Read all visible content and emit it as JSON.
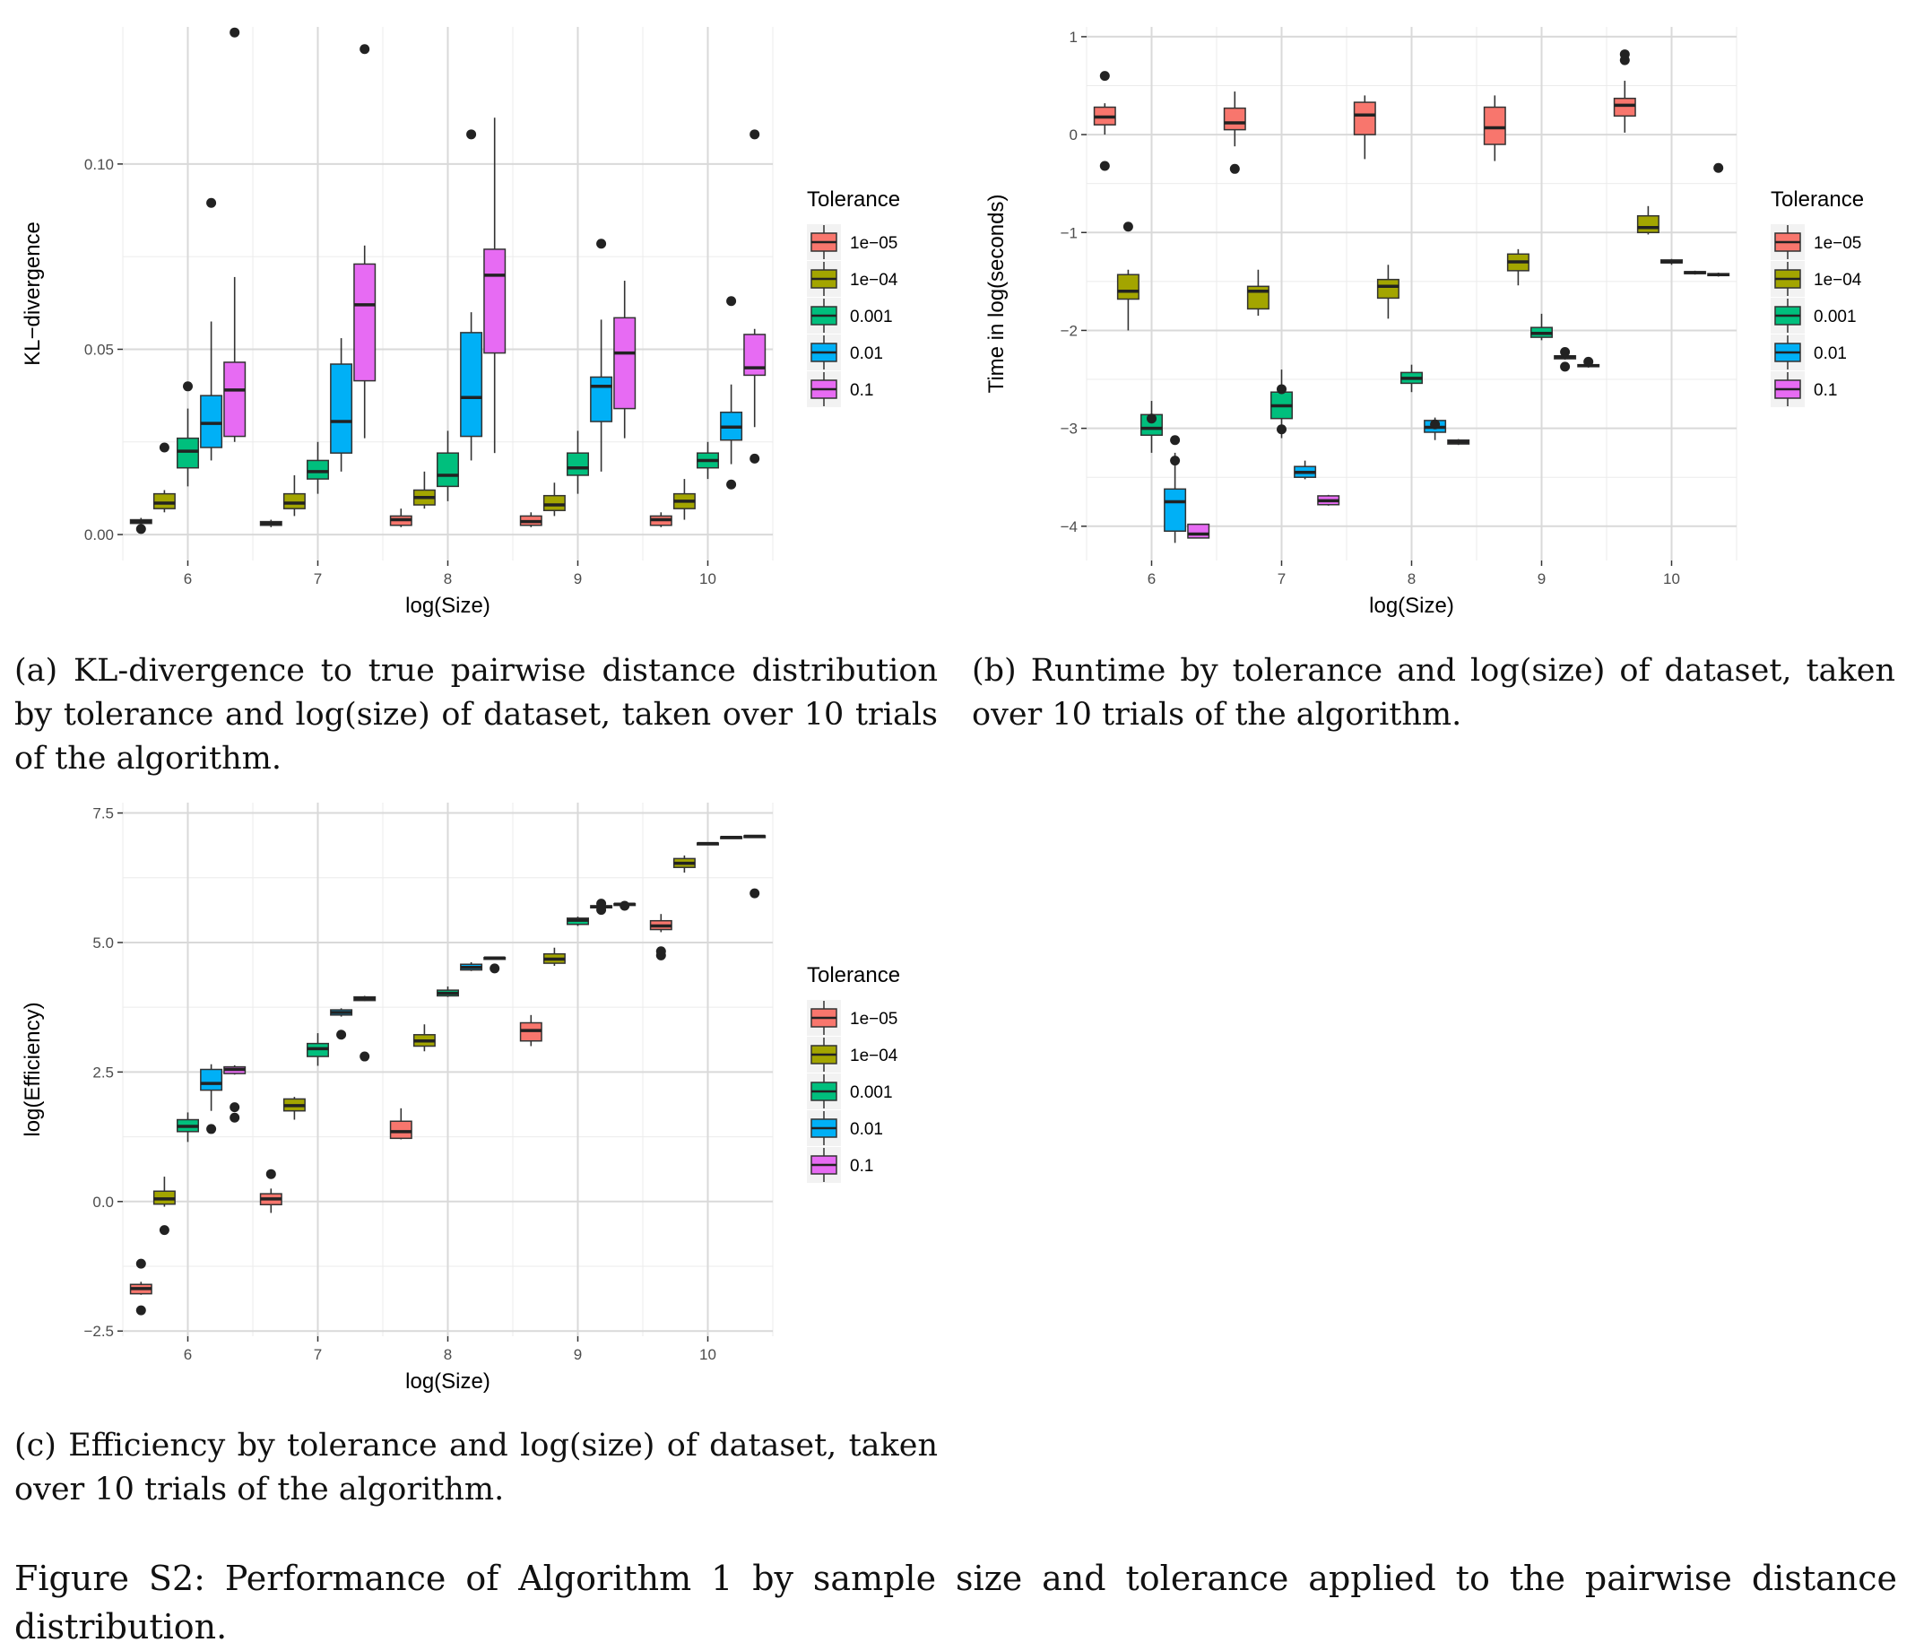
{
  "legend": {
    "title": "Tolerance",
    "entries": [
      "1e−05",
      "1e−04",
      "0.001",
      "0.01",
      "0.1"
    ],
    "colors": [
      "#F8766D",
      "#A3A500",
      "#00BF7D",
      "#00B0F6",
      "#E76BF3"
    ]
  },
  "captions": {
    "a": "(a) KL-divergence to true pairwise distance distribution by tolerance and log(size) of dataset, taken over 10 trials of the algorithm.",
    "b": "(b) Runtime by tolerance and log(size) of dataset, taken over 10 trials of the algorithm.",
    "c": "(c) Efficiency by tolerance and log(size) of dataset, taken over 10 trials of the algorithm.",
    "figure": "Figure S2: Performance of Algorithm 1 by sample size and tolerance applied to the pairwise distance distribution."
  },
  "chart_data": [
    {
      "id": "a",
      "type": "boxplot",
      "xlabel": "log(Size)",
      "ylabel": "KL−divergence",
      "categories": [
        "6",
        "7",
        "8",
        "9",
        "10"
      ],
      "yticks": [
        0.0,
        0.05,
        0.1
      ],
      "ytick_labels": [
        "0.00",
        "0.05",
        "0.10"
      ],
      "ylim": [
        -0.007,
        0.137
      ],
      "grid": true,
      "legend_position": "right",
      "series": [
        {
          "name": "1e−05",
          "boxes": [
            {
              "min": 0.002,
              "q1": 0.003,
              "median": 0.0035,
              "q3": 0.004,
              "max": 0.0045,
              "outliers": [
                0.0015
              ]
            },
            {
              "min": 0.002,
              "q1": 0.0025,
              "median": 0.003,
              "q3": 0.0035,
              "max": 0.004,
              "outliers": []
            },
            {
              "min": 0.002,
              "q1": 0.0025,
              "median": 0.004,
              "q3": 0.005,
              "max": 0.007,
              "outliers": []
            },
            {
              "min": 0.002,
              "q1": 0.0025,
              "median": 0.0035,
              "q3": 0.005,
              "max": 0.006,
              "outliers": []
            },
            {
              "min": 0.002,
              "q1": 0.0025,
              "median": 0.004,
              "q3": 0.005,
              "max": 0.006,
              "outliers": []
            }
          ]
        },
        {
          "name": "1e−04",
          "boxes": [
            {
              "min": 0.006,
              "q1": 0.007,
              "median": 0.0085,
              "q3": 0.011,
              "max": 0.012,
              "outliers": [
                0.0235
              ]
            },
            {
              "min": 0.005,
              "q1": 0.007,
              "median": 0.0085,
              "q3": 0.011,
              "max": 0.016,
              "outliers": []
            },
            {
              "min": 0.007,
              "q1": 0.008,
              "median": 0.01,
              "q3": 0.012,
              "max": 0.017,
              "outliers": []
            },
            {
              "min": 0.005,
              "q1": 0.0065,
              "median": 0.008,
              "q3": 0.0105,
              "max": 0.014,
              "outliers": []
            },
            {
              "min": 0.004,
              "q1": 0.007,
              "median": 0.009,
              "q3": 0.011,
              "max": 0.015,
              "outliers": []
            }
          ]
        },
        {
          "name": "0.001",
          "boxes": [
            {
              "min": 0.013,
              "q1": 0.018,
              "median": 0.0225,
              "q3": 0.026,
              "max": 0.034,
              "outliers": [
                0.04
              ]
            },
            {
              "min": 0.011,
              "q1": 0.015,
              "median": 0.017,
              "q3": 0.02,
              "max": 0.025,
              "outliers": []
            },
            {
              "min": 0.009,
              "q1": 0.013,
              "median": 0.016,
              "q3": 0.022,
              "max": 0.028,
              "outliers": []
            },
            {
              "min": 0.011,
              "q1": 0.016,
              "median": 0.018,
              "q3": 0.022,
              "max": 0.028,
              "outliers": []
            },
            {
              "min": 0.015,
              "q1": 0.018,
              "median": 0.02,
              "q3": 0.022,
              "max": 0.025,
              "outliers": []
            }
          ]
        },
        {
          "name": "0.01",
          "boxes": [
            {
              "min": 0.02,
              "q1": 0.0235,
              "median": 0.03,
              "q3": 0.0375,
              "max": 0.0575,
              "outliers": [
                0.0895
              ]
            },
            {
              "min": 0.017,
              "q1": 0.022,
              "median": 0.0305,
              "q3": 0.046,
              "max": 0.053,
              "outliers": []
            },
            {
              "min": 0.02,
              "q1": 0.0265,
              "median": 0.037,
              "q3": 0.0545,
              "max": 0.06,
              "outliers": [
                0.108
              ]
            },
            {
              "min": 0.017,
              "q1": 0.0305,
              "median": 0.04,
              "q3": 0.0425,
              "max": 0.058,
              "outliers": [
                0.0785
              ]
            },
            {
              "min": 0.019,
              "q1": 0.0255,
              "median": 0.029,
              "q3": 0.033,
              "max": 0.0405,
              "outliers": [
                0.063,
                0.0135
              ]
            }
          ]
        },
        {
          "name": "0.1",
          "boxes": [
            {
              "min": 0.025,
              "q1": 0.0265,
              "median": 0.039,
              "q3": 0.0465,
              "max": 0.0695,
              "outliers": [
                0.1355
              ]
            },
            {
              "min": 0.026,
              "q1": 0.0415,
              "median": 0.062,
              "q3": 0.073,
              "max": 0.078,
              "outliers": [
                0.131
              ]
            },
            {
              "min": 0.022,
              "q1": 0.049,
              "median": 0.07,
              "q3": 0.077,
              "max": 0.1125,
              "outliers": []
            },
            {
              "min": 0.026,
              "q1": 0.034,
              "median": 0.049,
              "q3": 0.0585,
              "max": 0.0685,
              "outliers": []
            },
            {
              "min": 0.029,
              "q1": 0.043,
              "median": 0.045,
              "q3": 0.054,
              "max": 0.0555,
              "outliers": [
                0.108,
                0.0205
              ]
            }
          ]
        }
      ]
    },
    {
      "id": "b",
      "type": "boxplot",
      "xlabel": "log(Size)",
      "ylabel": "Time in log(seconds)",
      "categories": [
        "6",
        "7",
        "8",
        "9",
        "10"
      ],
      "yticks": [
        -4,
        -3,
        -2,
        -1,
        0,
        1
      ],
      "ytick_labels": [
        "−4",
        "−3",
        "−2",
        "−1",
        "0",
        "1"
      ],
      "ylim": [
        -4.35,
        1.1
      ],
      "grid": true,
      "legend_position": "right",
      "series": [
        {
          "name": "1e−05",
          "boxes": [
            {
              "min": 0.0,
              "q1": 0.1,
              "median": 0.18,
              "q3": 0.28,
              "max": 0.32,
              "outliers": [
                0.6,
                -0.32
              ]
            },
            {
              "min": -0.12,
              "q1": 0.05,
              "median": 0.12,
              "q3": 0.27,
              "max": 0.44,
              "outliers": [
                -0.35
              ]
            },
            {
              "min": -0.25,
              "q1": 0.0,
              "median": 0.2,
              "q3": 0.33,
              "max": 0.4,
              "outliers": []
            },
            {
              "min": -0.27,
              "q1": -0.1,
              "median": 0.07,
              "q3": 0.28,
              "max": 0.4,
              "outliers": []
            },
            {
              "min": 0.02,
              "q1": 0.19,
              "median": 0.3,
              "q3": 0.37,
              "max": 0.55,
              "outliers": [
                0.82,
                0.76
              ]
            }
          ]
        },
        {
          "name": "1e−04",
          "boxes": [
            {
              "min": -2.0,
              "q1": -1.68,
              "median": -1.6,
              "q3": -1.43,
              "max": -1.38,
              "outliers": [
                -0.94
              ]
            },
            {
              "min": -1.85,
              "q1": -1.78,
              "median": -1.6,
              "q3": -1.55,
              "max": -1.38,
              "outliers": []
            },
            {
              "min": -1.88,
              "q1": -1.67,
              "median": -1.55,
              "q3": -1.48,
              "max": -1.33,
              "outliers": []
            },
            {
              "min": -1.54,
              "q1": -1.39,
              "median": -1.3,
              "q3": -1.22,
              "max": -1.17,
              "outliers": []
            },
            {
              "min": -1.02,
              "q1": -1.0,
              "median": -0.95,
              "q3": -0.83,
              "max": -0.73,
              "outliers": []
            }
          ]
        },
        {
          "name": "0.001",
          "boxes": [
            {
              "min": -3.25,
              "q1": -3.07,
              "median": -3.0,
              "q3": -2.86,
              "max": -2.72,
              "outliers": [
                -2.9
              ]
            },
            {
              "min": -3.1,
              "q1": -2.9,
              "median": -2.77,
              "q3": -2.63,
              "max": -2.4,
              "outliers": [
                -3.01,
                -2.6
              ]
            },
            {
              "min": -2.63,
              "q1": -2.54,
              "median": -2.49,
              "q3": -2.43,
              "max": -2.35,
              "outliers": []
            },
            {
              "min": -2.1,
              "q1": -2.07,
              "median": -2.03,
              "q3": -1.97,
              "max": -1.83,
              "outliers": []
            },
            {
              "min": -1.33,
              "q1": -1.31,
              "median": -1.3,
              "q3": -1.28,
              "max": -1.27,
              "outliers": []
            }
          ]
        },
        {
          "name": "0.01",
          "boxes": [
            {
              "min": -4.17,
              "q1": -4.05,
              "median": -3.75,
              "q3": -3.62,
              "max": -3.25,
              "outliers": [
                -3.12,
                -3.33
              ]
            },
            {
              "min": -3.52,
              "q1": -3.5,
              "median": -3.45,
              "q3": -3.39,
              "max": -3.33,
              "outliers": []
            },
            {
              "min": -3.12,
              "q1": -3.04,
              "median": -2.99,
              "q3": -2.92,
              "max": -2.89,
              "outliers": [
                -2.96
              ]
            },
            {
              "min": -2.3,
              "q1": -2.29,
              "median": -2.27,
              "q3": -2.26,
              "max": -2.25,
              "outliers": [
                -2.22,
                -2.37
              ]
            },
            {
              "min": -1.43,
              "q1": -1.42,
              "median": -1.41,
              "q3": -1.4,
              "max": -1.39,
              "outliers": []
            }
          ]
        },
        {
          "name": "0.1",
          "boxes": [
            {
              "min": -4.12,
              "q1": -4.12,
              "median": -4.08,
              "q3": -3.98,
              "max": -3.98,
              "outliers": []
            },
            {
              "min": -3.79,
              "q1": -3.78,
              "median": -3.74,
              "q3": -3.69,
              "max": -3.68,
              "outliers": []
            },
            {
              "min": -3.17,
              "q1": -3.16,
              "median": -3.14,
              "q3": -3.12,
              "max": -3.11,
              "outliers": []
            },
            {
              "min": -2.38,
              "q1": -2.37,
              "median": -2.36,
              "q3": -2.35,
              "max": -2.34,
              "outliers": [
                -2.32
              ]
            },
            {
              "min": -1.45,
              "q1": -1.44,
              "median": -1.43,
              "q3": -1.42,
              "max": -1.41,
              "outliers": [
                -0.34
              ]
            }
          ]
        }
      ]
    },
    {
      "id": "c",
      "type": "boxplot",
      "xlabel": "log(Size)",
      "ylabel": "log(Efficiency)",
      "categories": [
        "6",
        "7",
        "8",
        "9",
        "10"
      ],
      "yticks": [
        -2.5,
        0.0,
        2.5,
        5.0,
        7.5
      ],
      "ytick_labels": [
        "−2.5",
        "0.0",
        "2.5",
        "5.0",
        "7.5"
      ],
      "ylim": [
        -2.6,
        7.7
      ],
      "grid": true,
      "legend_position": "right",
      "series": [
        {
          "name": "1e−05",
          "boxes": [
            {
              "min": -1.8,
              "q1": -1.78,
              "median": -1.68,
              "q3": -1.6,
              "max": -1.55,
              "outliers": [
                -1.2,
                -2.1
              ]
            },
            {
              "min": -0.22,
              "q1": -0.06,
              "median": 0.05,
              "q3": 0.15,
              "max": 0.25,
              "outliers": [
                0.53
              ]
            },
            {
              "min": 1.2,
              "q1": 1.22,
              "median": 1.35,
              "q3": 1.55,
              "max": 1.8,
              "outliers": []
            },
            {
              "min": 3.0,
              "q1": 3.1,
              "median": 3.3,
              "q3": 3.45,
              "max": 3.6,
              "outliers": []
            },
            {
              "min": 5.2,
              "q1": 5.25,
              "median": 5.32,
              "q3": 5.42,
              "max": 5.55,
              "outliers": [
                4.75,
                4.83
              ]
            }
          ]
        },
        {
          "name": "1e−04",
          "boxes": [
            {
              "min": -0.1,
              "q1": -0.05,
              "median": 0.05,
              "q3": 0.2,
              "max": 0.48,
              "outliers": [
                -0.55
              ]
            },
            {
              "min": 1.58,
              "q1": 1.75,
              "median": 1.85,
              "q3": 1.98,
              "max": 2.02,
              "outliers": []
            },
            {
              "min": 2.9,
              "q1": 3.0,
              "median": 3.1,
              "q3": 3.22,
              "max": 3.42,
              "outliers": []
            },
            {
              "min": 4.55,
              "q1": 4.6,
              "median": 4.68,
              "q3": 4.78,
              "max": 4.9,
              "outliers": []
            },
            {
              "min": 6.35,
              "q1": 6.45,
              "median": 6.53,
              "q3": 6.62,
              "max": 6.68,
              "outliers": []
            }
          ]
        },
        {
          "name": "0.001",
          "boxes": [
            {
              "min": 1.15,
              "q1": 1.35,
              "median": 1.45,
              "q3": 1.58,
              "max": 1.72,
              "outliers": []
            },
            {
              "min": 2.62,
              "q1": 2.8,
              "median": 2.95,
              "q3": 3.05,
              "max": 3.25,
              "outliers": []
            },
            {
              "min": 3.95,
              "q1": 3.97,
              "median": 4.02,
              "q3": 4.08,
              "max": 4.15,
              "outliers": []
            },
            {
              "min": 5.32,
              "q1": 5.35,
              "median": 5.43,
              "q3": 5.47,
              "max": 5.5,
              "outliers": []
            },
            {
              "min": 6.89,
              "q1": 6.9,
              "median": 6.91,
              "q3": 6.92,
              "max": 6.93,
              "outliers": []
            }
          ]
        },
        {
          "name": "0.01",
          "boxes": [
            {
              "min": 1.75,
              "q1": 2.15,
              "median": 2.28,
              "q3": 2.55,
              "max": 2.65,
              "outliers": [
                1.4
              ]
            },
            {
              "min": 3.57,
              "q1": 3.6,
              "median": 3.65,
              "q3": 3.7,
              "max": 3.73,
              "outliers": [
                3.22
              ]
            },
            {
              "min": 4.45,
              "q1": 4.47,
              "median": 4.52,
              "q3": 4.58,
              "max": 4.62,
              "outliers": []
            },
            {
              "min": 5.65,
              "q1": 5.67,
              "median": 5.69,
              "q3": 5.71,
              "max": 5.73,
              "outliers": [
                5.75,
                5.63
              ]
            },
            {
              "min": 7.01,
              "q1": 7.02,
              "median": 7.03,
              "q3": 7.04,
              "max": 7.05,
              "outliers": []
            }
          ]
        },
        {
          "name": "0.1",
          "boxes": [
            {
              "min": 2.45,
              "q1": 2.47,
              "median": 2.55,
              "q3": 2.6,
              "max": 2.63,
              "outliers": [
                1.82,
                1.62
              ]
            },
            {
              "min": 3.87,
              "q1": 3.88,
              "median": 3.92,
              "q3": 3.95,
              "max": 3.97,
              "outliers": [
                2.8
              ]
            },
            {
              "min": 4.68,
              "q1": 4.69,
              "median": 4.7,
              "q3": 4.71,
              "max": 4.72,
              "outliers": [
                4.5
              ]
            },
            {
              "min": 5.72,
              "q1": 5.73,
              "median": 5.74,
              "q3": 5.75,
              "max": 5.76,
              "outliers": [
                5.71
              ]
            },
            {
              "min": 7.03,
              "q1": 7.04,
              "median": 7.05,
              "q3": 7.06,
              "max": 7.07,
              "outliers": [
                5.95
              ]
            }
          ]
        }
      ]
    }
  ]
}
